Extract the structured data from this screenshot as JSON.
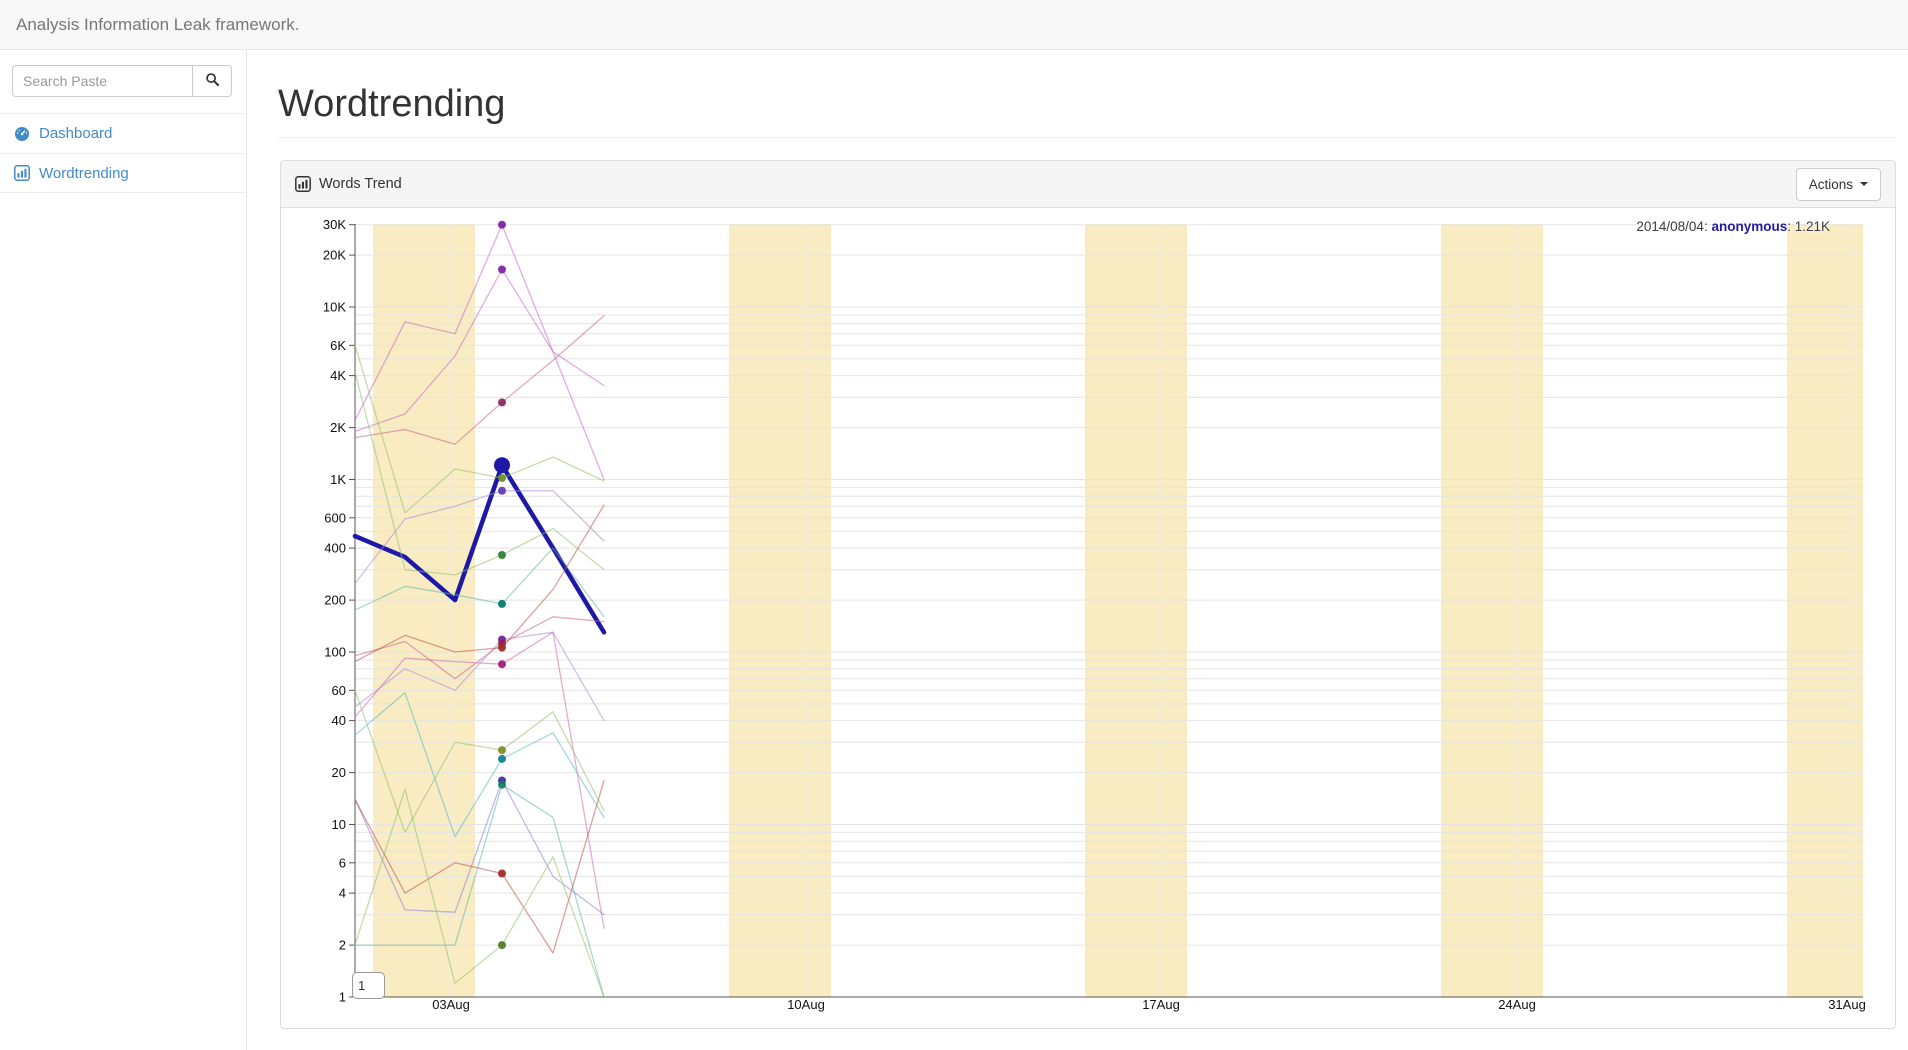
{
  "navbar": {
    "brand": "Analysis Information Leak framework."
  },
  "sidebar": {
    "search": {
      "placeholder": "Search Paste",
      "value": ""
    },
    "items": [
      {
        "label": "Dashboard",
        "icon": "dashboard-icon"
      },
      {
        "label": "Wordtrending",
        "icon": "bar-chart-icon"
      }
    ]
  },
  "main": {
    "page_title": "Wordtrending",
    "panel": {
      "title": "Words Trend",
      "actions_label": "Actions"
    }
  },
  "chart_data": {
    "type": "line",
    "title": "Words Trend",
    "y_scale": "log",
    "ylim": [
      1,
      31000
    ],
    "grid": true,
    "x_dates": [
      "2014/08/01",
      "2014/08/02",
      "2014/08/03",
      "2014/08/04",
      "2014/08/05",
      "2014/08/06"
    ],
    "x_axis": {
      "ticks": [
        "03Aug",
        "10Aug",
        "17Aug",
        "24Aug",
        "31Aug"
      ]
    },
    "y_axis": {
      "ticks": [
        {
          "label": "30K",
          "value": 30000
        },
        {
          "label": "20K",
          "value": 20000
        },
        {
          "label": "10K",
          "value": 10000
        },
        {
          "label": "6K",
          "value": 6000
        },
        {
          "label": "4K",
          "value": 4000
        },
        {
          "label": "2K",
          "value": 2000
        },
        {
          "label": "1K",
          "value": 1000
        },
        {
          "label": "600",
          "value": 600
        },
        {
          "label": "400",
          "value": 400
        },
        {
          "label": "200",
          "value": 200
        },
        {
          "label": "100",
          "value": 100
        },
        {
          "label": "60",
          "value": 60
        },
        {
          "label": "40",
          "value": 40
        },
        {
          "label": "20",
          "value": 20
        },
        {
          "label": "10",
          "value": 10
        },
        {
          "label": "6",
          "value": 6
        },
        {
          "label": "4",
          "value": 4
        },
        {
          "label": "2",
          "value": 2
        },
        {
          "label": "1",
          "value": 1
        }
      ]
    },
    "weekend_bands": [
      "02-03 Aug",
      "09-10 Aug",
      "16-17 Aug",
      "23-24 Aug",
      "30-31 Aug"
    ],
    "tooltip": {
      "prefix": "2014/08/04: ",
      "word": "anonymous",
      "suffix": ": 1.21K"
    },
    "range_box": "1",
    "colors": {
      "accent_link": "#428bca",
      "series_highlight": "#1d18a5",
      "weekend_band": "#f9ecc2",
      "gridline": "#e4e4e4"
    },
    "series": [
      {
        "line": "#c46ac4",
        "dot": "#7b1fa2",
        "values": [
          2200,
          8200,
          7000,
          30000,
          5500,
          1000
        ]
      },
      {
        "line": "#c46ac4",
        "dot": "#7b1fa2",
        "values": [
          1900,
          2400,
          5200,
          16500,
          5500,
          3500
        ]
      },
      {
        "line": "#c9608a",
        "dot": "#8e2457",
        "values": [
          1750,
          1950,
          1600,
          2800,
          4900,
          8900
        ]
      },
      {
        "word": "anonymous",
        "emphasis": true,
        "line": "#1d18a5",
        "dot": "#1d18a5",
        "values": [
          470,
          355,
          200,
          1210,
          400,
          130
        ]
      },
      {
        "line": "#93c06a",
        "dot": "#6b8e23",
        "values": [
          6000,
          640,
          1150,
          1020,
          1350,
          980
        ]
      },
      {
        "line": "#a98bd6",
        "dot": "#5e35b1",
        "values": [
          250,
          590,
          700,
          860,
          860,
          440
        ]
      },
      {
        "line": "#93c06a",
        "dot": "#2e7d32",
        "values": [
          4200,
          300,
          280,
          365,
          520,
          300
        ]
      },
      {
        "line": "#5fb6a5",
        "dot": "#00796b",
        "values": [
          175,
          240,
          215,
          190,
          400,
          160
        ]
      },
      {
        "line": "#a98bd6",
        "dot": "#6a1b9a",
        "values": [
          48,
          80,
          60,
          118,
          130,
          40
        ]
      },
      {
        "line": "#c9608a",
        "dot": "#8e2457",
        "values": [
          95,
          115,
          70,
          112,
          160,
          150
        ]
      },
      {
        "line": "#c0504d",
        "dot": "#9a2b22",
        "values": [
          88,
          125,
          100,
          106,
          230,
          710
        ]
      },
      {
        "line": "#cc6ab0",
        "dot": "#a01a7d",
        "values": [
          42,
          92,
          88,
          85,
          130,
          2.5
        ]
      },
      {
        "line": "#93c06a",
        "dot": "#7d8c1e",
        "values": [
          60,
          9,
          30,
          27,
          45,
          12
        ]
      },
      {
        "line": "#58b8c2",
        "dot": "#0e7f8a",
        "values": [
          33,
          58,
          8.5,
          24,
          34,
          11
        ]
      },
      {
        "line": "#8f7fd4",
        "dot": "#3f2b96",
        "values": [
          14,
          3.2,
          3.1,
          18,
          5,
          3
        ]
      },
      {
        "line": "#5fb6a5",
        "dot": "#0e7f6b",
        "values": [
          2,
          2,
          2,
          17,
          11,
          1
        ]
      },
      {
        "line": "#c0504d",
        "dot": "#9a2b22",
        "values": [
          14,
          4,
          6,
          5.2,
          1.8,
          18
        ]
      },
      {
        "line": "#93c06a",
        "dot": "#4a7d1e",
        "values": [
          2,
          16,
          1.2,
          2,
          6.5,
          1
        ]
      }
    ]
  }
}
